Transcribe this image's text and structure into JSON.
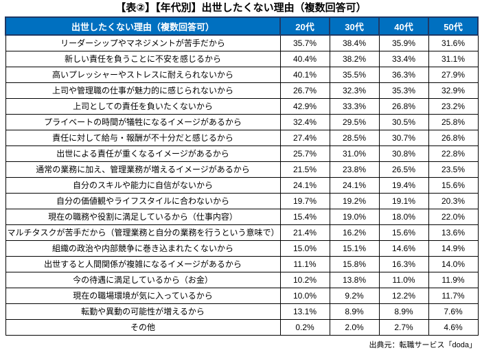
{
  "title": "【表②】【年代別】出世したくない理由（複数回答可）",
  "source": "出典元：転職サービス「doda」",
  "colors": {
    "header_bg": "#0070C0",
    "header_border": "#1F3864",
    "header_text": "#FFFFFF",
    "cell_border": "#000000",
    "cell_bg": "#FFFFFF"
  },
  "chart_data": {
    "type": "table",
    "columns": [
      "出世したくない理由（複数回答可）",
      "20代",
      "30代",
      "40代",
      "50代"
    ],
    "rows": [
      {
        "label": "リーダーシップやマネジメントが苦手だから",
        "values": [
          "35.7%",
          "38.4%",
          "35.9%",
          "31.6%"
        ]
      },
      {
        "label": "新しい責任を負うことに不安を感じるから",
        "values": [
          "40.4%",
          "38.2%",
          "33.4%",
          "31.1%"
        ]
      },
      {
        "label": "高いプレッシャーやストレスに耐えられないから",
        "values": [
          "40.1%",
          "35.5%",
          "36.3%",
          "27.9%"
        ]
      },
      {
        "label": "上司や管理職の仕事が魅力的に感じられないから",
        "values": [
          "26.7%",
          "32.3%",
          "35.3%",
          "32.9%"
        ]
      },
      {
        "label": "上司としての責任を負いたくないから",
        "values": [
          "42.9%",
          "33.3%",
          "26.8%",
          "23.2%"
        ]
      },
      {
        "label": "プライベートの時間が犠牲になるイメージがあるから",
        "values": [
          "32.4%",
          "29.5%",
          "30.5%",
          "25.8%"
        ]
      },
      {
        "label": "責任に対して給与・報酬が不十分だと感じるから",
        "values": [
          "27.4%",
          "28.5%",
          "30.7%",
          "26.8%"
        ]
      },
      {
        "label": "出世による責任が重くなるイメージがあるから",
        "values": [
          "25.7%",
          "31.0%",
          "30.8%",
          "22.8%"
        ]
      },
      {
        "label": "通常の業務に加え、管理業務が増えるイメージがあるから",
        "values": [
          "21.5%",
          "23.8%",
          "26.5%",
          "23.5%"
        ]
      },
      {
        "label": "自分のスキルや能力に自信がないから",
        "values": [
          "24.1%",
          "24.1%",
          "19.4%",
          "15.6%"
        ]
      },
      {
        "label": "自分の価値観やライフスタイルに合わないから",
        "values": [
          "19.7%",
          "19.2%",
          "19.1%",
          "20.3%"
        ]
      },
      {
        "label": "現在の職務や役割に満足しているから（仕事内容）",
        "values": [
          "15.4%",
          "19.0%",
          "18.0%",
          "22.0%"
        ]
      },
      {
        "label": "マルチタスクが苦手だから（管理業務と自分の業務を行うという意味で）",
        "values": [
          "21.4%",
          "16.2%",
          "15.6%",
          "13.6%"
        ]
      },
      {
        "label": "組織の政治や内部競争に巻き込まれたくないから",
        "values": [
          "15.0%",
          "15.1%",
          "14.6%",
          "14.9%"
        ]
      },
      {
        "label": "出世すると人間関係が複雑になるイメージがあるから",
        "values": [
          "11.1%",
          "15.8%",
          "16.3%",
          "14.0%"
        ]
      },
      {
        "label": "今の待遇に満足しているから（お金）",
        "values": [
          "10.2%",
          "13.8%",
          "11.0%",
          "11.9%"
        ]
      },
      {
        "label": "現在の職場環境が気に入っているから",
        "values": [
          "10.0%",
          "9.2%",
          "12.2%",
          "11.7%"
        ]
      },
      {
        "label": "転勤や異動の可能性が増えるから",
        "values": [
          "13.1%",
          "8.9%",
          "8.9%",
          "7.6%"
        ]
      },
      {
        "label": "その他",
        "values": [
          "0.2%",
          "2.0%",
          "2.7%",
          "4.6%"
        ]
      }
    ]
  }
}
